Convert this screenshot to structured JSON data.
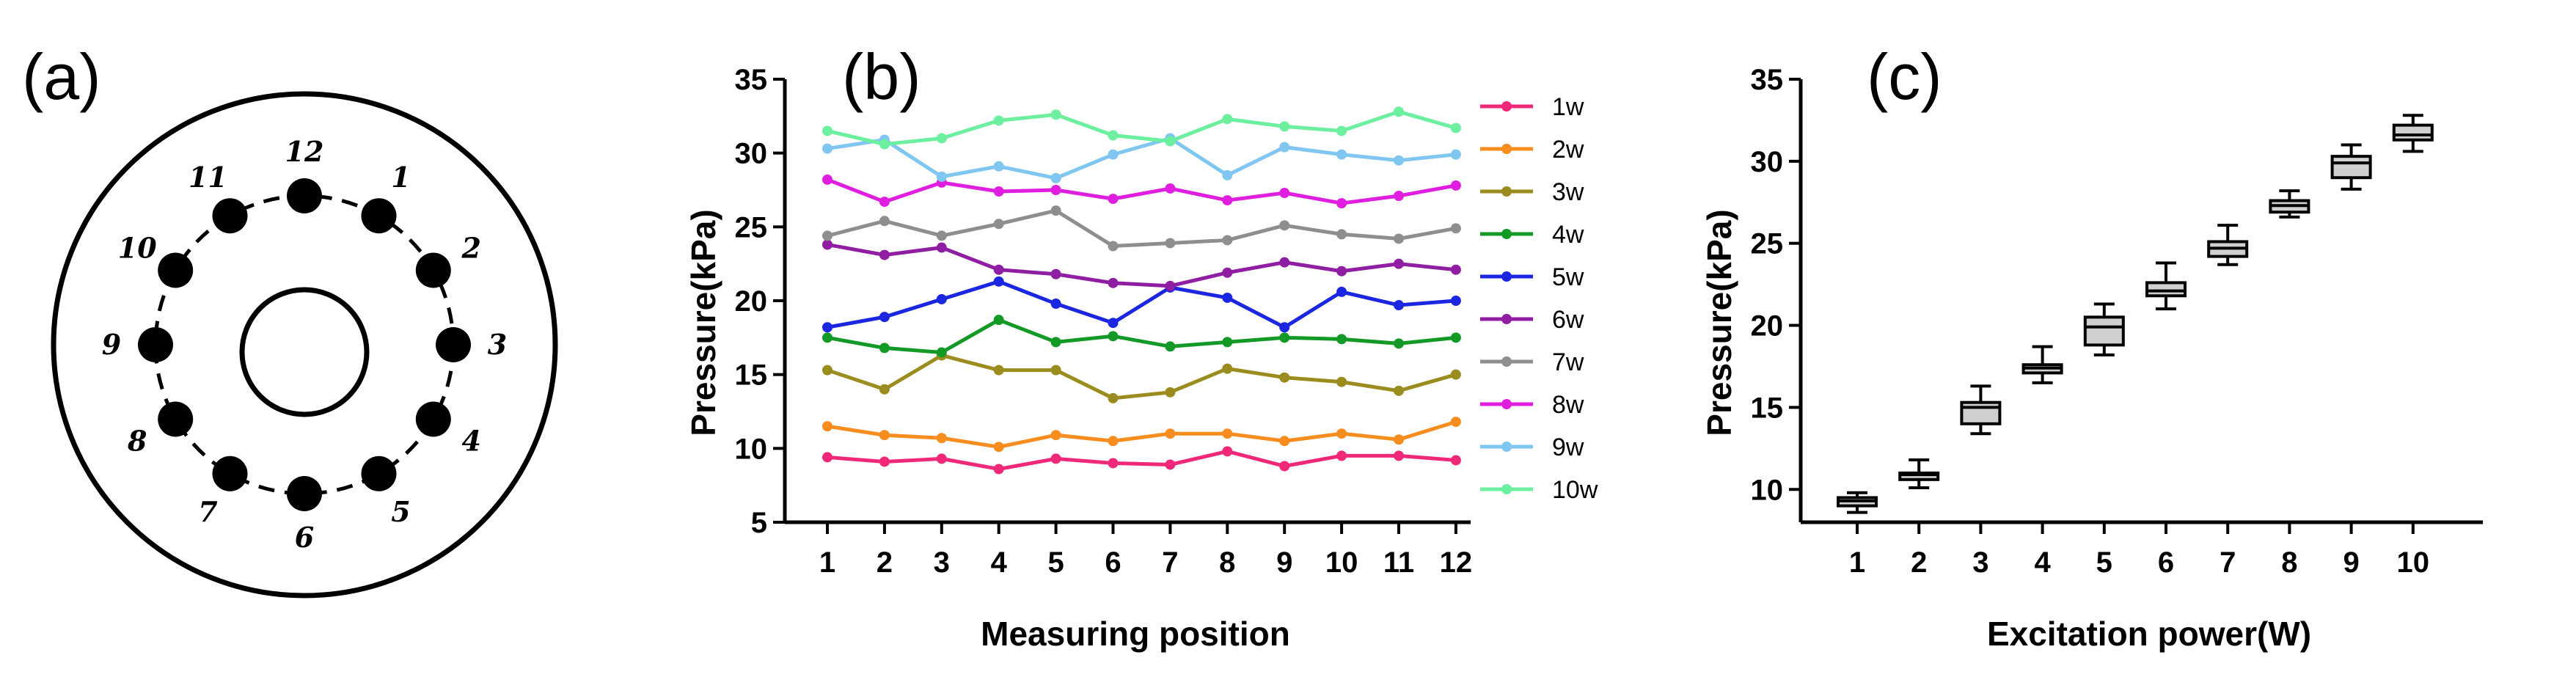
{
  "panels": {
    "a": {
      "label": "(a)",
      "positions": [
        "1",
        "2",
        "3",
        "4",
        "5",
        "6",
        "7",
        "8",
        "9",
        "10",
        "11",
        "12"
      ]
    },
    "b": {
      "label": "(b)"
    },
    "c": {
      "label": "(c)"
    }
  },
  "chart_data": [
    {
      "type": "line",
      "xlabel": "Measuring position",
      "ylabel": "Pressure(kPa)",
      "categories": [
        "1",
        "2",
        "3",
        "4",
        "5",
        "6",
        "7",
        "8",
        "9",
        "10",
        "11",
        "12"
      ],
      "yticks": [
        "5",
        "10",
        "15",
        "20",
        "25",
        "30",
        "35"
      ],
      "ylim": [
        5,
        35
      ],
      "grid": false,
      "legend": "right",
      "series": [
        {
          "name": "1w",
          "color": "#f0287a",
          "values": [
            9.4,
            9.1,
            9.3,
            8.6,
            9.3,
            9.0,
            8.9,
            9.8,
            8.8,
            9.5,
            9.5,
            9.2
          ]
        },
        {
          "name": "2w",
          "color": "#f78c1f",
          "values": [
            11.5,
            10.9,
            10.7,
            10.1,
            10.9,
            10.5,
            11.0,
            11.0,
            10.5,
            11.0,
            10.6,
            11.8
          ]
        },
        {
          "name": "3w",
          "color": "#9a8c1e",
          "values": [
            15.3,
            14.0,
            16.3,
            15.3,
            15.3,
            13.4,
            13.8,
            15.4,
            14.8,
            14.5,
            13.9,
            15.0
          ]
        },
        {
          "name": "4w",
          "color": "#139a26",
          "values": [
            17.5,
            16.8,
            16.5,
            18.7,
            17.2,
            17.6,
            16.9,
            17.2,
            17.5,
            17.4,
            17.1,
            17.5
          ]
        },
        {
          "name": "5w",
          "color": "#1a26e0",
          "values": [
            18.2,
            18.9,
            20.1,
            21.3,
            19.8,
            18.5,
            20.9,
            20.2,
            18.2,
            20.6,
            19.7,
            20.0
          ]
        },
        {
          "name": "6w",
          "color": "#8f1ea3",
          "values": [
            23.8,
            23.1,
            23.6,
            22.1,
            21.8,
            21.2,
            21.0,
            21.9,
            22.6,
            22.0,
            22.5,
            22.1
          ]
        },
        {
          "name": "7w",
          "color": "#8e8e8e",
          "values": [
            24.4,
            25.4,
            24.4,
            25.2,
            26.1,
            23.7,
            23.9,
            24.1,
            25.1,
            24.5,
            24.2,
            24.9
          ]
        },
        {
          "name": "8w",
          "color": "#e01ee0",
          "values": [
            28.2,
            26.7,
            28.0,
            27.4,
            27.5,
            26.9,
            27.6,
            26.8,
            27.3,
            26.6,
            27.1,
            27.8
          ]
        },
        {
          "name": "9w",
          "color": "#7fc6f0",
          "values": [
            30.3,
            30.9,
            28.4,
            29.1,
            28.3,
            29.9,
            31.0,
            28.5,
            30.4,
            29.9,
            29.5,
            29.9
          ]
        },
        {
          "name": "10w",
          "color": "#6cf0a0",
          "values": [
            31.5,
            30.6,
            31.0,
            32.2,
            32.6,
            31.2,
            30.8,
            32.3,
            31.8,
            31.5,
            32.8,
            31.7
          ]
        }
      ]
    },
    {
      "type": "box",
      "xlabel": "Excitation power(W)",
      "ylabel": "Pressure(kPa)",
      "categories": [
        "1",
        "2",
        "3",
        "4",
        "5",
        "6",
        "7",
        "8",
        "9",
        "10"
      ],
      "yticks": [
        "10",
        "15",
        "20",
        "25",
        "30",
        "35"
      ],
      "ylim": [
        8,
        35
      ],
      "grid": false,
      "box_color": "#d0d0d0",
      "boxes": [
        {
          "min": 8.6,
          "q1": 9.0,
          "median": 9.3,
          "q3": 9.5,
          "max": 9.8
        },
        {
          "min": 10.1,
          "q1": 10.6,
          "median": 10.9,
          "q3": 11.0,
          "max": 11.8
        },
        {
          "min": 13.4,
          "q1": 14.0,
          "median": 15.0,
          "q3": 15.3,
          "max": 16.3
        },
        {
          "min": 16.5,
          "q1": 17.1,
          "median": 17.4,
          "q3": 17.6,
          "max": 18.7
        },
        {
          "min": 18.2,
          "q1": 18.8,
          "median": 19.9,
          "q3": 20.5,
          "max": 21.3
        },
        {
          "min": 21.0,
          "q1": 21.8,
          "median": 22.1,
          "q3": 22.6,
          "max": 23.8
        },
        {
          "min": 23.7,
          "q1": 24.2,
          "median": 24.7,
          "q3": 25.1,
          "max": 26.1
        },
        {
          "min": 26.6,
          "q1": 26.9,
          "median": 27.3,
          "q3": 27.6,
          "max": 28.2
        },
        {
          "min": 28.3,
          "q1": 29.0,
          "median": 29.9,
          "q3": 30.3,
          "max": 31.0
        },
        {
          "min": 30.6,
          "q1": 31.3,
          "median": 31.6,
          "q3": 32.2,
          "max": 32.8
        }
      ]
    }
  ]
}
